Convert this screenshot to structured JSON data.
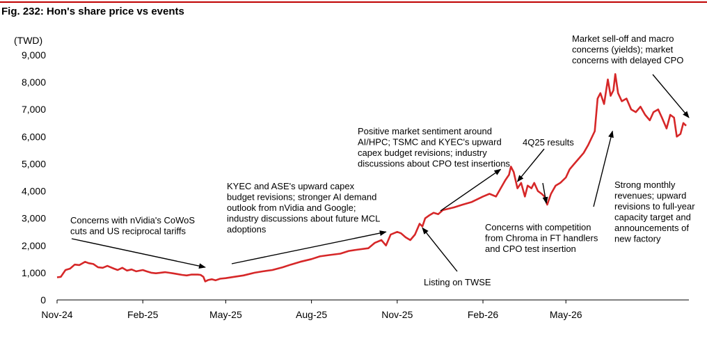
{
  "chart_data": {
    "type": "line",
    "title": "Fig. 232: Hon's share price vs events",
    "unit_label": "(TWD)",
    "ylim": [
      0,
      9000
    ],
    "yticks": [
      0,
      1000,
      2000,
      3000,
      4000,
      5000,
      6000,
      7000,
      8000,
      9000
    ],
    "ytick_labels": [
      "0",
      "1,000",
      "2,000",
      "3,000",
      "4,000",
      "5,000",
      "6,000",
      "7,000",
      "8,000",
      "9,000"
    ],
    "xlim": [
      "2024-11-01",
      "2026-09-10"
    ],
    "xticks": [
      {
        "date": "2024-11-01",
        "label": "Nov-24"
      },
      {
        "date": "2025-02-01",
        "label": "Feb-25"
      },
      {
        "date": "2025-05-01",
        "label": "May-25"
      },
      {
        "date": "2025-08-01",
        "label": "Aug-25"
      },
      {
        "date": "2025-11-01",
        "label": "Nov-25"
      },
      {
        "date": "2026-02-01",
        "label": "Feb-26"
      },
      {
        "date": "2026-05-01",
        "label": "May-26"
      }
    ],
    "grid": false,
    "line_color": "#d62728",
    "series": [
      {
        "x": [
          "2024-11-01",
          "2024-11-05",
          "2024-11-10",
          "2024-11-15",
          "2024-11-20",
          "2024-11-25",
          "2024-12-01",
          "2024-12-05",
          "2024-12-10",
          "2024-12-15",
          "2024-12-20",
          "2024-12-25",
          "2025-01-01",
          "2025-01-05",
          "2025-01-10",
          "2025-01-15",
          "2025-01-20",
          "2025-01-25",
          "2025-02-01",
          "2025-02-05",
          "2025-02-10",
          "2025-02-15",
          "2025-02-20",
          "2025-02-25",
          "2025-03-01",
          "2025-03-05",
          "2025-03-10",
          "2025-03-15",
          "2025-03-20",
          "2025-03-25",
          "2025-04-01",
          "2025-04-04",
          "2025-04-07",
          "2025-04-09",
          "2025-04-12",
          "2025-04-16",
          "2025-04-20",
          "2025-04-25",
          "2025-05-01",
          "2025-05-10",
          "2025-05-20",
          "2025-06-01",
          "2025-06-10",
          "2025-06-20",
          "2025-07-01",
          "2025-07-10",
          "2025-07-20",
          "2025-08-01",
          "2025-08-10",
          "2025-08-20",
          "2025-09-01",
          "2025-09-10",
          "2025-09-20",
          "2025-10-01",
          "2025-10-08",
          "2025-10-15",
          "2025-10-20",
          "2025-10-25",
          "2025-11-01",
          "2025-11-05",
          "2025-11-10",
          "2025-11-15",
          "2025-11-20",
          "2025-11-25",
          "2025-11-28",
          "2025-12-01",
          "2025-12-05",
          "2025-12-10",
          "2025-12-15",
          "2025-12-20",
          "2026-01-01",
          "2026-01-10",
          "2026-01-20",
          "2026-02-01",
          "2026-02-08",
          "2026-02-15",
          "2026-02-20",
          "2026-02-25",
          "2026-03-01",
          "2026-03-03",
          "2026-03-06",
          "2026-03-10",
          "2026-03-14",
          "2026-03-18",
          "2026-03-21",
          "2026-03-25",
          "2026-03-28",
          "2026-04-01",
          "2026-04-05",
          "2026-04-08",
          "2026-04-11",
          "2026-04-15",
          "2026-04-20",
          "2026-04-25",
          "2026-05-01",
          "2026-05-05",
          "2026-05-10",
          "2026-05-15",
          "2026-05-20",
          "2026-05-25",
          "2026-06-01",
          "2026-06-04",
          "2026-06-07",
          "2026-06-11",
          "2026-06-15",
          "2026-06-18",
          "2026-06-21",
          "2026-06-23",
          "2026-06-26",
          "2026-06-30",
          "2026-07-05",
          "2026-07-10",
          "2026-07-15",
          "2026-07-20",
          "2026-07-25",
          "2026-07-30",
          "2026-08-03",
          "2026-08-08",
          "2026-08-12",
          "2026-08-17",
          "2026-08-21",
          "2026-08-25",
          "2026-08-28",
          "2026-09-01",
          "2026-09-04",
          "2026-09-07"
        ],
        "y": [
          830,
          850,
          1100,
          1150,
          1300,
          1280,
          1400,
          1350,
          1320,
          1200,
          1180,
          1250,
          1150,
          1100,
          1180,
          1080,
          1120,
          1050,
          1100,
          1050,
          1000,
          980,
          1000,
          1020,
          1000,
          980,
          950,
          920,
          900,
          930,
          930,
          920,
          850,
          680,
          730,
          760,
          720,
          780,
          800,
          850,
          900,
          1000,
          1050,
          1100,
          1200,
          1300,
          1400,
          1500,
          1600,
          1650,
          1700,
          1800,
          1850,
          1900,
          2100,
          2200,
          2000,
          2400,
          2500,
          2450,
          2300,
          2200,
          2400,
          2800,
          2700,
          3000,
          3100,
          3200,
          3150,
          3300,
          3400,
          3500,
          3600,
          3800,
          3900,
          3800,
          4100,
          4400,
          4600,
          4900,
          4700,
          4100,
          4300,
          3800,
          4200,
          4100,
          4300,
          4000,
          3900,
          3800,
          3500,
          3900,
          4200,
          4300,
          4500,
          4800,
          5000,
          5200,
          5400,
          5700,
          6200,
          7400,
          7600,
          7200,
          8100,
          7500,
          7700,
          8300,
          7600,
          7300,
          7400,
          7000,
          6900,
          7100,
          6800,
          6600,
          6900,
          7000,
          6700,
          6300,
          6800,
          6700,
          6000,
          6100,
          6500,
          6400
        ]
      }
    ],
    "annotations": [
      {
        "id": "tariffs",
        "lines": [
          "Concerns with nVidia's CoWoS",
          "cuts and US reciprocal tariffs"
        ],
        "arrow_to": {
          "date": "2025-04-09",
          "value": 1200
        }
      },
      {
        "id": "capex-2025",
        "lines": [
          "KYEC and ASE's upward capex",
          "budget revisions; stronger AI demand",
          "outlook from nVidia and Google;",
          "industry discussions about future MCL",
          "adoptions"
        ],
        "arrow_to": {
          "date": "2025-10-20",
          "value": 2500
        }
      },
      {
        "id": "listing",
        "lines": [
          "Listing on TWSE"
        ],
        "arrow_to": {
          "date": "2025-11-28",
          "value": 2650
        }
      },
      {
        "id": "sentiment",
        "lines": [
          "Positive market sentiment around",
          "AI/HPC; TSMC and KYEC's upward",
          "capex budget revisions; industry",
          "discussions about CPO test insertions"
        ],
        "arrow_to": {
          "date": "2026-02-20",
          "value": 4800
        }
      },
      {
        "id": "4q25",
        "lines": [
          "4Q25 results"
        ],
        "arrow_to": {
          "date": "2026-03-10",
          "value": 4350
        }
      },
      {
        "id": "competition",
        "lines": [
          "Concerns with competition",
          "from Chroma in FT handlers",
          "and CPO test insertion"
        ],
        "arrow_to": {
          "date": "2026-04-10",
          "value": 3550
        }
      },
      {
        "id": "monthly",
        "lines": [
          "Strong monthly",
          "revenues; upward",
          "revisions to full-year",
          "capacity target and",
          "announcements of",
          "new factory"
        ],
        "arrow_to": {
          "date": "2026-06-20",
          "value": 6200
        }
      },
      {
        "id": "selloff",
        "lines": [
          "Market sell-off and macro",
          "concerns (yields); market",
          "concerns with delayed CPO"
        ],
        "arrow_to": {
          "date": "2026-09-10",
          "value": 6700
        }
      }
    ]
  }
}
